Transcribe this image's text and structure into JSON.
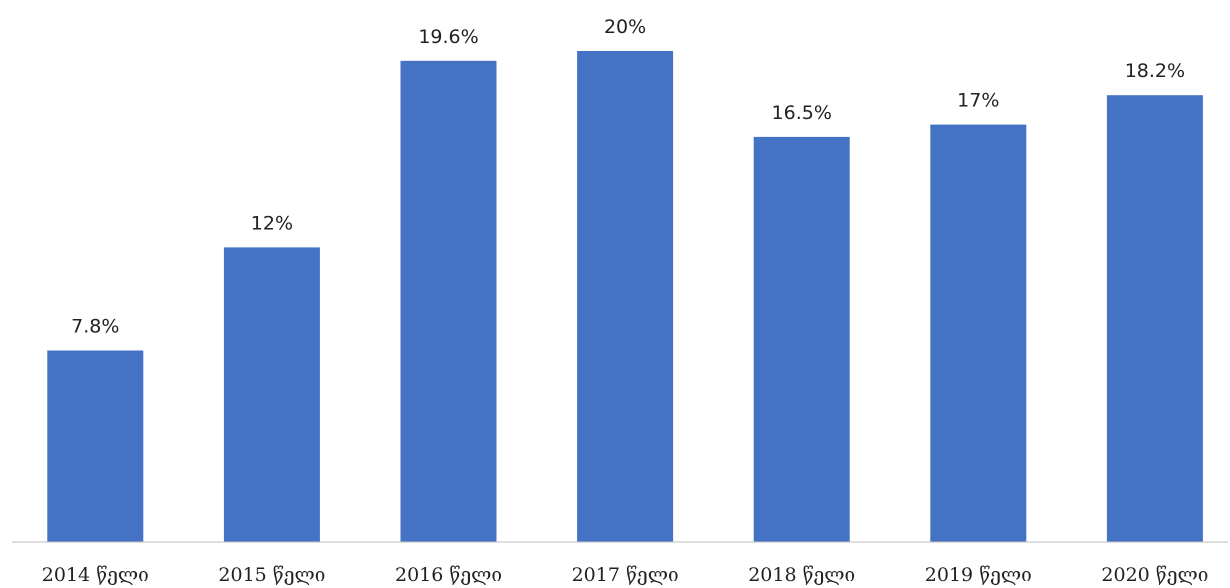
{
  "chart_data": {
    "type": "bar",
    "categories": [
      "2014 წელი",
      "2015 წელი",
      "2016 წელი",
      "2017 წელი",
      "2018 წელი",
      "2019 წელი",
      "2020 წელი"
    ],
    "values": [
      7.8,
      12,
      19.6,
      20,
      16.5,
      17,
      18.2
    ],
    "data_labels": [
      "7.8%",
      "12%",
      "19.6%",
      "20%",
      "16.5%",
      "17%",
      "18.2%"
    ],
    "title": "",
    "xlabel": "",
    "ylabel": "",
    "ylim": [
      0,
      21
    ],
    "grid": false,
    "legend": "none",
    "bar_color": "#4472C4"
  }
}
